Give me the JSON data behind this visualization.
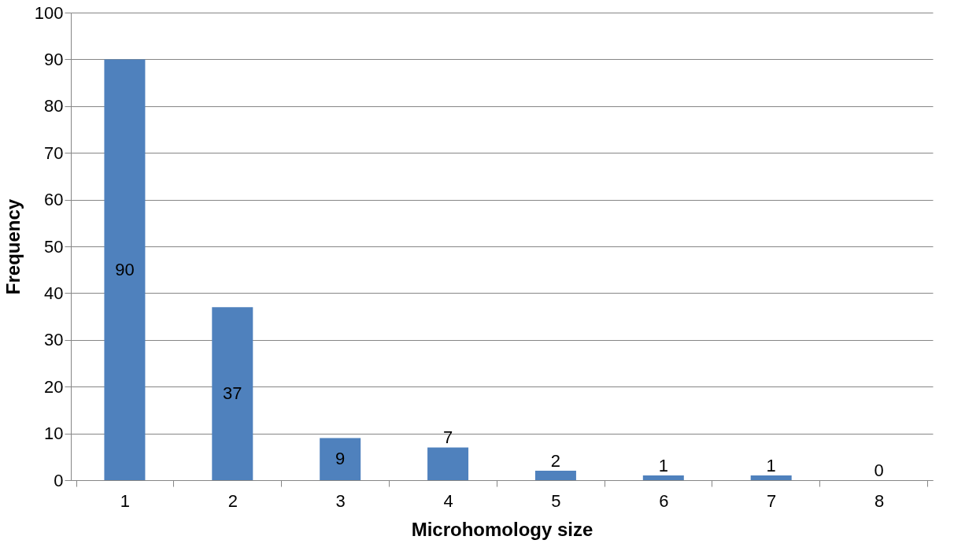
{
  "chart_data": {
    "type": "bar",
    "xlabel": "Microhomology size",
    "ylabel": "Frequency",
    "categories": [
      "1",
      "2",
      "3",
      "4",
      "5",
      "6",
      "7",
      "8"
    ],
    "values": [
      90,
      37,
      9,
      7,
      2,
      1,
      1,
      0
    ],
    "color": "#4f81bd",
    "ylim": [
      0,
      100
    ],
    "yticks": [
      0,
      10,
      20,
      30,
      40,
      50,
      60,
      70,
      80,
      90,
      100
    ],
    "grid": "y",
    "data_labels": true
  }
}
